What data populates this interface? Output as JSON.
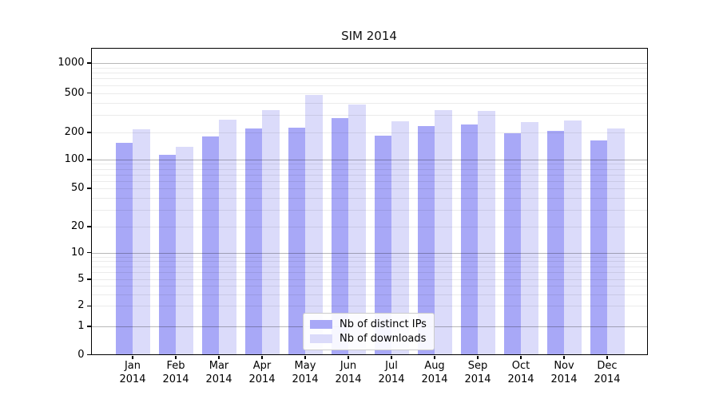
{
  "figure": {
    "title": "SIM 2014"
  },
  "chart_data": {
    "type": "bar",
    "title": "SIM 2014",
    "xlabel": "",
    "ylabel": "",
    "x_month_labels": [
      "Jan",
      "Feb",
      "Mar",
      "Apr",
      "May",
      "Jun",
      "Jul",
      "Aug",
      "Sep",
      "Oct",
      "Nov",
      "Dec"
    ],
    "x_year_label": "2014",
    "series": [
      {
        "name": "Nb of distinct IPs",
        "color": "#a8a8f7",
        "values": [
          152,
          112,
          180,
          220,
          224,
          278,
          184,
          234,
          240,
          195,
          206,
          163
        ]
      },
      {
        "name": "Nb of downloads",
        "color": "#dbdbfa",
        "values": [
          215,
          139,
          270,
          338,
          476,
          381,
          258,
          338,
          330,
          254,
          263,
          219
        ]
      }
    ],
    "y_scale": "symlog",
    "y_tick_labels": [
      0,
      1,
      2,
      5,
      10,
      20,
      50,
      100,
      200,
      500,
      1000
    ],
    "ylim": [
      0,
      1450
    ],
    "grid": "both",
    "grid_major_values": [
      1,
      10,
      100,
      1000
    ],
    "legend_position": "lower center"
  }
}
